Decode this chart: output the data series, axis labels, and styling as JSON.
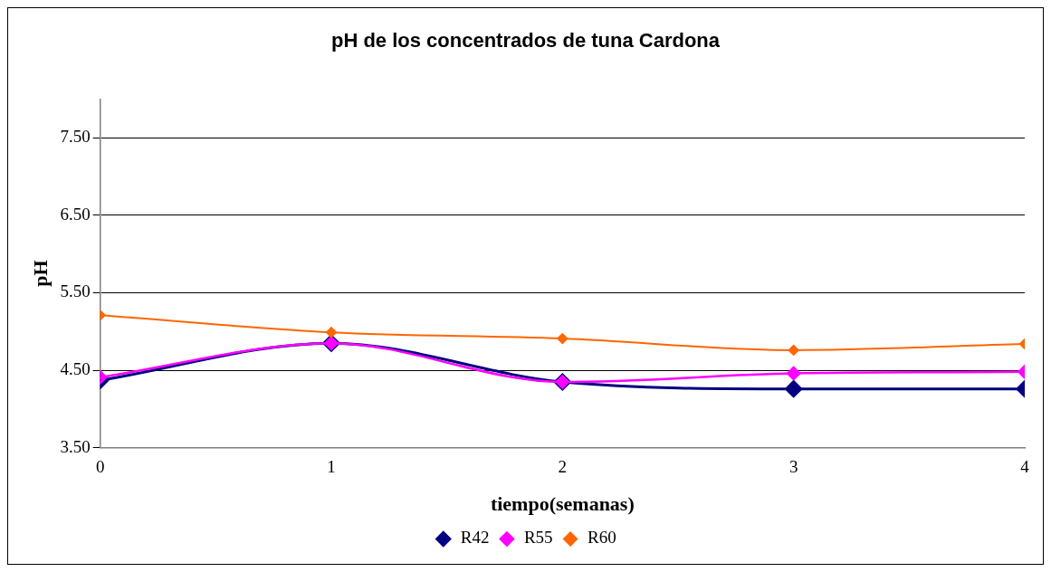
{
  "chart_data": {
    "type": "line",
    "title": "pH de los concentrados de tuna Cardona",
    "xlabel": "tiempo(semanas)",
    "ylabel": "pH",
    "x": [
      0,
      1,
      2,
      3,
      4
    ],
    "series": [
      {
        "name": "R42",
        "color": "#000080",
        "values": [
          4.37,
          4.85,
          4.35,
          4.26,
          4.26
        ]
      },
      {
        "name": "R55",
        "color": "#ff00ff",
        "values": [
          4.41,
          4.85,
          4.35,
          4.46,
          4.48
        ]
      },
      {
        "name": "R60",
        "color": "#ff6600",
        "values": [
          5.21,
          4.99,
          4.91,
          4.76,
          4.84
        ]
      }
    ],
    "xlim": [
      0,
      4
    ],
    "xticks": [
      0,
      1,
      2,
      3,
      4
    ],
    "ylim": [
      3.5,
      8
    ],
    "yticks": [
      {
        "value": 3.5,
        "label": "3.50"
      },
      {
        "value": 4.5,
        "label": "4.50"
      },
      {
        "value": 5.5,
        "label": "5.50"
      },
      {
        "value": 6.5,
        "label": "6.50"
      },
      {
        "value": 7.5,
        "label": "7.50"
      }
    ],
    "grid": "y",
    "legend": "bottom",
    "marker": "diamond",
    "line_style": "solid"
  }
}
